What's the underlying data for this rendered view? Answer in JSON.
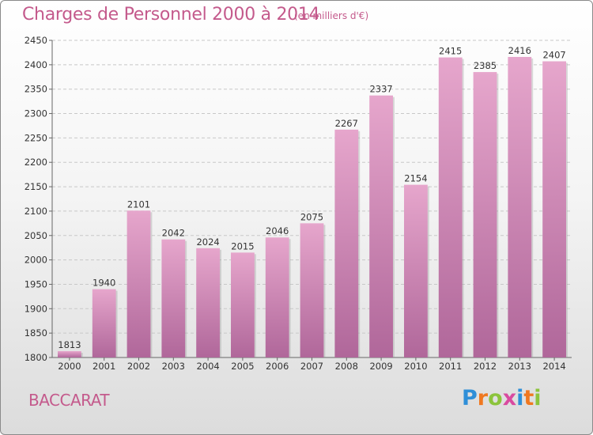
{
  "header": {
    "title": "Charges de Personnel 2000 à 2014",
    "unit": "(en milliers d'€)"
  },
  "footer": {
    "commune": "BACCARAT",
    "logo_text": "Proxiti"
  },
  "colors": {
    "text_accent": "#c45a8c",
    "bar_top": "#e6a6cc",
    "bar_bottom": "#b0679a",
    "logo_letters": [
      "#2f8fd8",
      "#f07820",
      "#8cc43c",
      "#d94aa0",
      "#2f8fd8",
      "#f07820",
      "#8cc43c"
    ]
  },
  "chart_data": {
    "type": "bar",
    "title": "Charges de Personnel 2000 à 2014",
    "subtitle": "(en milliers d'€)",
    "xlabel": "",
    "ylabel": "",
    "categories": [
      "2000",
      "2001",
      "2002",
      "2003",
      "2004",
      "2005",
      "2006",
      "2007",
      "2008",
      "2009",
      "2010",
      "2011",
      "2012",
      "2013",
      "2014"
    ],
    "values": [
      1813,
      1940,
      2101,
      2042,
      2024,
      2015,
      2046,
      2075,
      2267,
      2337,
      2154,
      2415,
      2385,
      2416,
      2407
    ],
    "ylim": [
      1800,
      2450
    ],
    "yticks": [
      1800,
      1850,
      1900,
      1950,
      2000,
      2050,
      2100,
      2150,
      2200,
      2250,
      2300,
      2350,
      2400,
      2450
    ],
    "grid": true,
    "legend": "none"
  }
}
